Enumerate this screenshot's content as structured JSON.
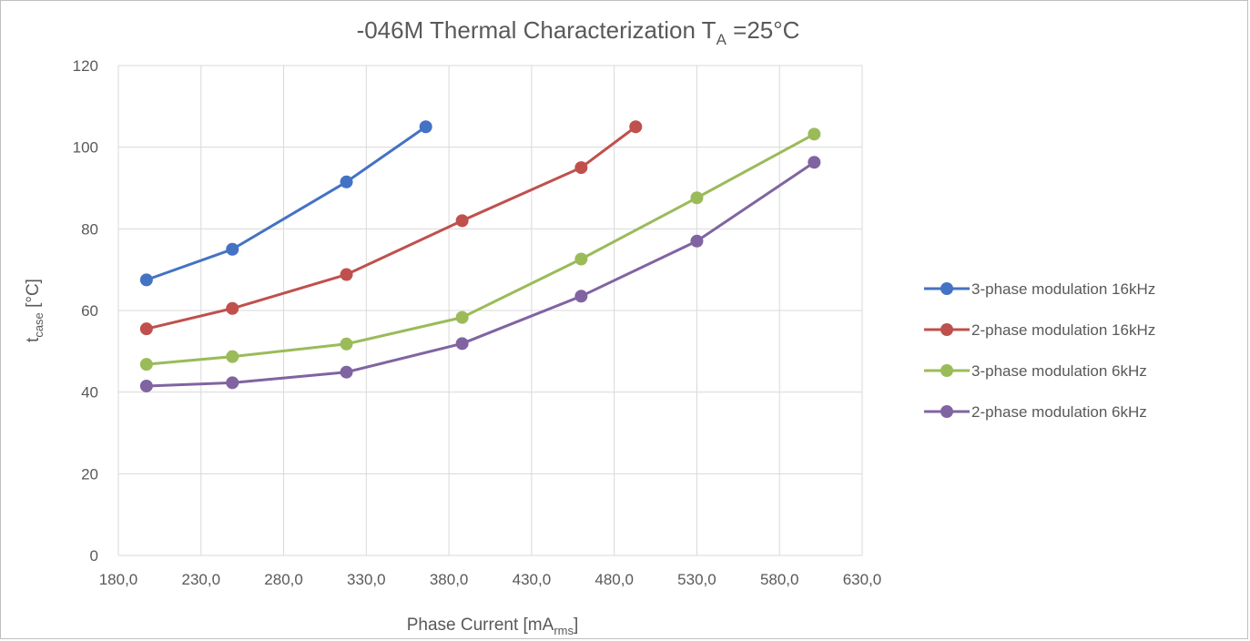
{
  "chart_data": {
    "type": "line",
    "title": "-046M  Thermal Characterizatio",
    "title_tail": "n  T",
    "title_sub": "A",
    "title_end": " =25°C",
    "xlabel": "Phase Current [mA",
    "xlabel_sub": "rms",
    "xlabel_end": "]",
    "ylabel": "t",
    "ylabel_sub": "case",
    "ylabel_end": " [°C]",
    "xlim": [
      180,
      630
    ],
    "ylim": [
      0,
      120
    ],
    "x_ticks": [
      "180,0",
      "230,0",
      "280,0",
      "330,0",
      "380,0",
      "430,0",
      "480,0",
      "530,0",
      "580,0",
      "630,0"
    ],
    "y_ticks": [
      "0",
      "20",
      "40",
      "60",
      "80",
      "100",
      "120"
    ],
    "grid": true,
    "legend_position": "right",
    "series": [
      {
        "name": "3-phase modulation  16kHz",
        "color": "#4472c4",
        "points": [
          [
            197,
            67.5
          ],
          [
            249,
            75
          ],
          [
            318,
            91.5
          ],
          [
            366,
            105
          ]
        ]
      },
      {
        "name": "2-phase modulation  16kHz",
        "color": "#c0504d",
        "points": [
          [
            197,
            55.5
          ],
          [
            249,
            60.5
          ],
          [
            318,
            68.8
          ],
          [
            388,
            82
          ],
          [
            460,
            95
          ],
          [
            493,
            105
          ]
        ]
      },
      {
        "name": "3-phase modulation  6kHz",
        "color": "#9bbb59",
        "points": [
          [
            197,
            46.8
          ],
          [
            249,
            48.7
          ],
          [
            318,
            51.8
          ],
          [
            388,
            58.3
          ],
          [
            460,
            72.6
          ],
          [
            530,
            87.6
          ],
          [
            601,
            103.2
          ]
        ]
      },
      {
        "name": "2-phase modulation  6kHz",
        "color": "#8064a2",
        "points": [
          [
            197,
            41.5
          ],
          [
            249,
            42.3
          ],
          [
            318,
            44.9
          ],
          [
            388,
            51.9
          ],
          [
            460,
            63.5
          ],
          [
            530,
            77
          ],
          [
            601,
            96.3
          ]
        ]
      }
    ]
  }
}
